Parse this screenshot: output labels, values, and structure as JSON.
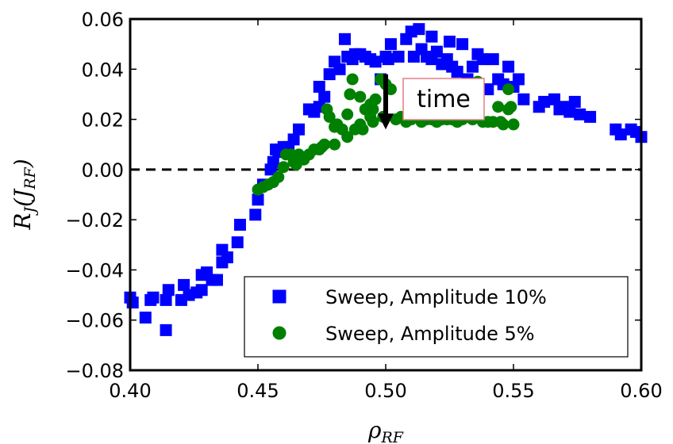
{
  "chart_data": {
    "type": "scatter",
    "title": "",
    "xlabel": "ρ",
    "xlabel_sub": "RF",
    "ylabel_main": "R",
    "ylabel_sub": "J",
    "ylabel_arg": "J",
    "ylabel_arg_sub": "RF",
    "xlim": [
      0.4,
      0.6
    ],
    "ylim": [
      -0.08,
      0.06
    ],
    "x_ticks": [
      0.4,
      0.45,
      0.5,
      0.55,
      0.6
    ],
    "x_tick_labels": [
      "0.40",
      "0.45",
      "0.50",
      "0.55",
      "0.60"
    ],
    "y_ticks": [
      -0.08,
      -0.06,
      -0.04,
      -0.02,
      0.0,
      0.02,
      0.04,
      0.06
    ],
    "y_tick_labels": [
      "−0.08",
      "−0.06",
      "−0.04",
      "−0.02",
      "0.00",
      "0.02",
      "0.04",
      "0.06"
    ],
    "grid": false,
    "legend_position": "lower-right",
    "reference_line": {
      "y": 0.0,
      "style": "dashed",
      "color": "#000000"
    },
    "annotation": {
      "text": "time",
      "arrow_from": [
        0.5,
        0.038
      ],
      "arrow_to": [
        0.5,
        0.016
      ]
    },
    "series": [
      {
        "name": "Sweep, Amplitude 10%",
        "marker": "square",
        "color": "#0000ff",
        "points": [
          [
            0.4,
            -0.051
          ],
          [
            0.401,
            -0.053
          ],
          [
            0.406,
            -0.059
          ],
          [
            0.408,
            -0.052
          ],
          [
            0.409,
            -0.051
          ],
          [
            0.414,
            -0.052
          ],
          [
            0.415,
            -0.048
          ],
          [
            0.414,
            -0.064
          ],
          [
            0.42,
            -0.052
          ],
          [
            0.421,
            -0.046
          ],
          [
            0.423,
            -0.05
          ],
          [
            0.426,
            -0.049
          ],
          [
            0.428,
            -0.042
          ],
          [
            0.428,
            -0.048
          ],
          [
            0.43,
            -0.041
          ],
          [
            0.432,
            -0.044
          ],
          [
            0.434,
            -0.044
          ],
          [
            0.436,
            -0.037
          ],
          [
            0.436,
            -0.032
          ],
          [
            0.438,
            -0.035
          ],
          [
            0.442,
            -0.029
          ],
          [
            0.443,
            -0.022
          ],
          [
            0.449,
            -0.018
          ],
          [
            0.45,
            -0.012
          ],
          [
            0.452,
            -0.006
          ],
          [
            0.455,
            0.0
          ],
          [
            0.456,
            0.003
          ],
          [
            0.457,
            0.008
          ],
          [
            0.458,
            0.007
          ],
          [
            0.46,
            0.009
          ],
          [
            0.462,
            0.009
          ],
          [
            0.464,
            0.012
          ],
          [
            0.466,
            0.016
          ],
          [
            0.47,
            0.024
          ],
          [
            0.472,
            0.023
          ],
          [
            0.474,
            0.025
          ],
          [
            0.474,
            0.033
          ],
          [
            0.476,
            0.029
          ],
          [
            0.478,
            0.038
          ],
          [
            0.48,
            0.043
          ],
          [
            0.482,
            0.04
          ],
          [
            0.484,
            0.052
          ],
          [
            0.485,
            0.045
          ],
          [
            0.487,
            0.044
          ],
          [
            0.488,
            0.046
          ],
          [
            0.49,
            0.046
          ],
          [
            0.492,
            0.045
          ],
          [
            0.494,
            0.044
          ],
          [
            0.496,
            0.043
          ],
          [
            0.498,
            0.036
          ],
          [
            0.5,
            0.045
          ],
          [
            0.501,
            0.044
          ],
          [
            0.502,
            0.05
          ],
          [
            0.505,
            0.045
          ],
          [
            0.508,
            0.052
          ],
          [
            0.51,
            0.055
          ],
          [
            0.511,
            0.045
          ],
          [
            0.513,
            0.056
          ],
          [
            0.514,
            0.048
          ],
          [
            0.516,
            0.045
          ],
          [
            0.518,
            0.053
          ],
          [
            0.518,
            0.044
          ],
          [
            0.52,
            0.047
          ],
          [
            0.522,
            0.042
          ],
          [
            0.524,
            0.044
          ],
          [
            0.525,
            0.051
          ],
          [
            0.526,
            0.041
          ],
          [
            0.528,
            0.039
          ],
          [
            0.53,
            0.05
          ],
          [
            0.532,
            0.036
          ],
          [
            0.534,
            0.041
          ],
          [
            0.536,
            0.046
          ],
          [
            0.538,
            0.044
          ],
          [
            0.54,
            0.032
          ],
          [
            0.542,
            0.044
          ],
          [
            0.544,
            0.036
          ],
          [
            0.546,
            0.034
          ],
          [
            0.548,
            0.041
          ],
          [
            0.55,
            0.033
          ],
          [
            0.552,
            0.036
          ],
          [
            0.554,
            0.028
          ],
          [
            0.56,
            0.025
          ],
          [
            0.562,
            0.027
          ],
          [
            0.566,
            0.028
          ],
          [
            0.568,
            0.024
          ],
          [
            0.57,
            0.025
          ],
          [
            0.572,
            0.023
          ],
          [
            0.574,
            0.027
          ],
          [
            0.576,
            0.022
          ],
          [
            0.58,
            0.021
          ],
          [
            0.59,
            0.016
          ],
          [
            0.592,
            0.014
          ],
          [
            0.596,
            0.016
          ],
          [
            0.598,
            0.015
          ],
          [
            0.6,
            0.013
          ]
        ]
      },
      {
        "name": "Sweep, Amplitude 5%",
        "marker": "circle",
        "color": "#008000",
        "points": [
          [
            0.45,
            -0.008
          ],
          [
            0.452,
            -0.007
          ],
          [
            0.454,
            -0.006
          ],
          [
            0.456,
            -0.005
          ],
          [
            0.458,
            -0.003
          ],
          [
            0.46,
            0.001
          ],
          [
            0.461,
            0.006
          ],
          [
            0.463,
            0.006
          ],
          [
            0.464,
            0.003
          ],
          [
            0.465,
            0.002
          ],
          [
            0.466,
            0.006
          ],
          [
            0.468,
            0.004
          ],
          [
            0.47,
            0.006
          ],
          [
            0.472,
            0.008
          ],
          [
            0.474,
            0.008
          ],
          [
            0.475,
            0.009
          ],
          [
            0.476,
            0.01
          ],
          [
            0.477,
            0.024
          ],
          [
            0.478,
            0.021
          ],
          [
            0.48,
            0.01
          ],
          [
            0.48,
            0.017
          ],
          [
            0.481,
            0.018
          ],
          [
            0.483,
            0.016
          ],
          [
            0.485,
            0.013
          ],
          [
            0.485,
            0.022
          ],
          [
            0.486,
            0.03
          ],
          [
            0.487,
            0.036
          ],
          [
            0.488,
            0.016
          ],
          [
            0.49,
            0.029
          ],
          [
            0.49,
            0.018
          ],
          [
            0.491,
            0.016
          ],
          [
            0.492,
            0.024
          ],
          [
            0.494,
            0.026
          ],
          [
            0.494,
            0.021
          ],
          [
            0.495,
            0.024
          ],
          [
            0.495,
            0.019
          ],
          [
            0.496,
            0.028
          ],
          [
            0.498,
            0.036
          ],
          [
            0.499,
            0.021
          ],
          [
            0.5,
            0.034
          ],
          [
            0.502,
            0.032
          ],
          [
            0.504,
            0.02
          ],
          [
            0.506,
            0.021
          ],
          [
            0.508,
            0.019
          ],
          [
            0.51,
            0.02
          ],
          [
            0.512,
            0.021
          ],
          [
            0.514,
            0.019
          ],
          [
            0.516,
            0.02
          ],
          [
            0.518,
            0.02
          ],
          [
            0.52,
            0.019
          ],
          [
            0.522,
            0.02
          ],
          [
            0.524,
            0.02
          ],
          [
            0.526,
            0.02
          ],
          [
            0.528,
            0.019
          ],
          [
            0.53,
            0.02
          ],
          [
            0.532,
            0.022
          ],
          [
            0.534,
            0.02
          ],
          [
            0.536,
            0.035
          ],
          [
            0.538,
            0.019
          ],
          [
            0.54,
            0.019
          ],
          [
            0.542,
            0.019
          ],
          [
            0.544,
            0.025
          ],
          [
            0.545,
            0.019
          ],
          [
            0.546,
            0.018
          ],
          [
            0.548,
            0.024
          ],
          [
            0.548,
            0.032
          ],
          [
            0.549,
            0.025
          ],
          [
            0.55,
            0.018
          ]
        ]
      }
    ]
  }
}
